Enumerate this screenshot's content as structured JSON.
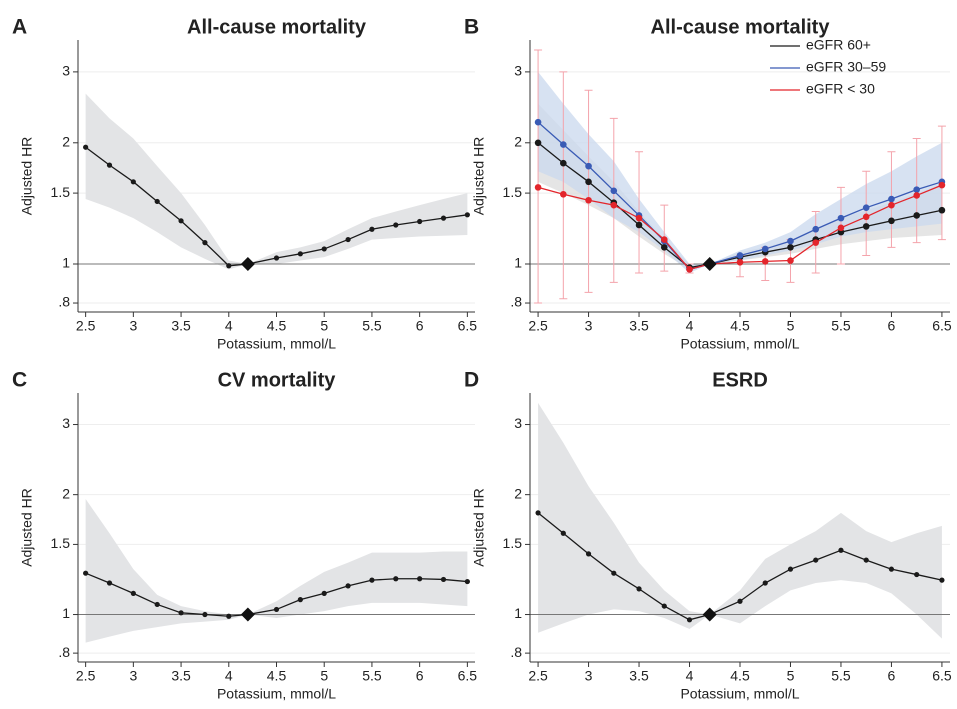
{
  "chart_data": [
    {
      "type": "line",
      "label": "A",
      "title": "All-cause mortality",
      "xlabel": "Potassium, mmol/L",
      "ylabel": "Adjusted HR",
      "log_y": true,
      "grid": true,
      "xlim": [
        2.42,
        6.58
      ],
      "ylim": [
        0.76,
        3.6
      ],
      "xticks": [
        2.5,
        3,
        3.5,
        4,
        4.5,
        5,
        5.5,
        6,
        6.5
      ],
      "yticks": [
        {
          "value": 0.8,
          "label": ".8"
        },
        1,
        1.5,
        2,
        3
      ],
      "reference": {
        "x": 4.2,
        "y": 1
      },
      "x": [
        2.5,
        2.75,
        3,
        3.25,
        3.5,
        3.75,
        4,
        4.2,
        4.5,
        4.75,
        5,
        5.25,
        5.5,
        5.75,
        6,
        6.25,
        6.5
      ],
      "color": "#1a1a1a",
      "band_color": "#e3e4e6",
      "values": [
        1.95,
        1.76,
        1.6,
        1.43,
        1.28,
        1.13,
        0.99,
        1,
        1.035,
        1.06,
        1.09,
        1.15,
        1.22,
        1.25,
        1.275,
        1.3,
        1.325
      ],
      "ci_lower": [
        1.45,
        1.38,
        1.3,
        1.2,
        1.1,
        1.03,
        0.97,
        1,
        1.0,
        1.02,
        1.04,
        1.09,
        1.15,
        1.16,
        1.17,
        1.175,
        1.18
      ],
      "ci_upper": [
        2.65,
        2.3,
        2.05,
        1.75,
        1.5,
        1.25,
        1.02,
        1,
        1.07,
        1.1,
        1.14,
        1.22,
        1.3,
        1.35,
        1.4,
        1.45,
        1.5
      ]
    },
    {
      "type": "line",
      "label": "B",
      "title": "All-cause mortality",
      "xlabel": "Potassium, mmol/L",
      "ylabel": "Adjusted HR",
      "log_y": true,
      "grid": true,
      "legend": "top-right",
      "xlim": [
        2.42,
        6.58
      ],
      "ylim": [
        0.76,
        3.6
      ],
      "xticks": [
        2.5,
        3,
        3.5,
        4,
        4.5,
        5,
        5.5,
        6,
        6.5
      ],
      "yticks": [
        {
          "value": 0.8,
          "label": ".8"
        },
        1,
        1.5,
        2,
        3
      ],
      "reference": {
        "x": 4.2,
        "y": 1
      },
      "x": [
        2.5,
        2.75,
        3,
        3.25,
        3.5,
        3.75,
        4,
        4.2,
        4.5,
        4.75,
        5,
        5.25,
        5.5,
        5.75,
        6,
        6.25,
        6.5
      ],
      "series": [
        {
          "name": "eGFR 60+",
          "color": "#1a1a1a",
          "band_color": "#dcdcdc",
          "ci_style": "band",
          "values": [
            2.0,
            1.78,
            1.6,
            1.42,
            1.25,
            1.1,
            0.98,
            1,
            1.04,
            1.07,
            1.1,
            1.15,
            1.2,
            1.24,
            1.28,
            1.32,
            1.36
          ],
          "ci_lower": [
            1.6,
            1.5,
            1.4,
            1.3,
            1.17,
            1.06,
            0.97,
            1,
            1.02,
            1.04,
            1.06,
            1.09,
            1.12,
            1.14,
            1.16,
            1.17,
            1.18
          ],
          "ci_upper": [
            2.5,
            2.15,
            1.85,
            1.6,
            1.35,
            1.15,
            1.0,
            1,
            1.07,
            1.1,
            1.15,
            1.22,
            1.3,
            1.36,
            1.42,
            1.5,
            1.58
          ]
        },
        {
          "name": "eGFR 30–59",
          "color": "#3a5bb5",
          "band_color": "#c9d8ee",
          "ci_style": "band",
          "values": [
            2.25,
            1.98,
            1.75,
            1.52,
            1.32,
            1.14,
            0.97,
            1,
            1.05,
            1.09,
            1.14,
            1.22,
            1.3,
            1.38,
            1.45,
            1.53,
            1.6
          ],
          "ci_lower": [
            1.7,
            1.6,
            1.45,
            1.3,
            1.2,
            1.08,
            0.95,
            1,
            1.02,
            1.05,
            1.08,
            1.12,
            1.17,
            1.2,
            1.22,
            1.24,
            1.26
          ],
          "ci_upper": [
            3.0,
            2.5,
            2.1,
            1.8,
            1.45,
            1.2,
            1.0,
            1,
            1.08,
            1.13,
            1.2,
            1.33,
            1.45,
            1.58,
            1.7,
            1.85,
            2.0
          ]
        },
        {
          "name": "eGFR < 30",
          "color": "#e3252b",
          "band_color": "#f4a3ab",
          "ci_style": "bars",
          "values": [
            1.55,
            1.49,
            1.44,
            1.4,
            1.3,
            1.15,
            0.97,
            1,
            1.01,
            1.015,
            1.02,
            1.13,
            1.23,
            1.31,
            1.4,
            1.48,
            1.57
          ],
          "ci_lower": [
            0.8,
            0.82,
            0.85,
            0.9,
            0.95,
            0.96,
            0.95,
            1,
            0.93,
            0.91,
            0.9,
            0.95,
            1.0,
            1.05,
            1.1,
            1.13,
            1.15
          ],
          "ci_upper": [
            3.4,
            3.0,
            2.7,
            2.3,
            1.9,
            1.4,
            1.0,
            1,
            1.05,
            1.1,
            1.15,
            1.35,
            1.55,
            1.7,
            1.9,
            2.05,
            2.2
          ]
        }
      ]
    },
    {
      "type": "line",
      "label": "C",
      "title": "CV mortality",
      "xlabel": "Potassium, mmol/L",
      "ylabel": "Adjusted HR",
      "log_y": true,
      "grid": true,
      "xlim": [
        2.42,
        6.58
      ],
      "ylim": [
        0.76,
        3.6
      ],
      "xticks": [
        2.5,
        3,
        3.5,
        4,
        4.5,
        5,
        5.5,
        6,
        6.5
      ],
      "yticks": [
        {
          "value": 0.8,
          "label": ".8"
        },
        1,
        1.5,
        2,
        3
      ],
      "reference": {
        "x": 4.2,
        "y": 1
      },
      "x": [
        2.5,
        2.75,
        3,
        3.25,
        3.5,
        3.75,
        4,
        4.2,
        4.5,
        4.75,
        5,
        5.25,
        5.5,
        5.75,
        6,
        6.25,
        6.5
      ],
      "color": "#1a1a1a",
      "band_color": "#e3e4e6",
      "values": [
        1.27,
        1.2,
        1.13,
        1.06,
        1.01,
        1.0,
        0.99,
        1,
        1.03,
        1.09,
        1.13,
        1.18,
        1.22,
        1.23,
        1.23,
        1.225,
        1.21
      ],
      "ci_lower": [
        0.85,
        0.88,
        0.91,
        0.93,
        0.95,
        0.96,
        0.97,
        1,
        0.98,
        1.0,
        1.02,
        1.05,
        1.07,
        1.07,
        1.07,
        1.06,
        1.05
      ],
      "ci_upper": [
        1.95,
        1.6,
        1.3,
        1.12,
        1.05,
        1.02,
        1.0,
        1,
        1.08,
        1.18,
        1.28,
        1.35,
        1.43,
        1.43,
        1.43,
        1.44,
        1.44
      ]
    },
    {
      "type": "line",
      "label": "D",
      "title": "ESRD",
      "xlabel": "Potassium, mmol/L",
      "ylabel": "Adjusted HR",
      "log_y": true,
      "grid": true,
      "xlim": [
        2.42,
        6.58
      ],
      "ylim": [
        0.76,
        3.6
      ],
      "xticks": [
        2.5,
        3,
        3.5,
        4,
        4.5,
        5,
        5.5,
        6,
        6.5
      ],
      "yticks": [
        {
          "value": 0.8,
          "label": ".8"
        },
        1,
        1.5,
        2,
        3
      ],
      "reference": {
        "x": 4.2,
        "y": 1
      },
      "x": [
        2.5,
        2.75,
        3,
        3.25,
        3.5,
        3.75,
        4,
        4.2,
        4.5,
        4.75,
        5,
        5.25,
        5.5,
        5.75,
        6,
        6.25,
        6.5
      ],
      "color": "#1a1a1a",
      "band_color": "#e3e4e6",
      "values": [
        1.8,
        1.6,
        1.42,
        1.27,
        1.16,
        1.05,
        0.97,
        1,
        1.08,
        1.2,
        1.3,
        1.37,
        1.45,
        1.37,
        1.3,
        1.26,
        1.22
      ],
      "ci_lower": [
        0.9,
        0.95,
        1.0,
        1.03,
        1.02,
        0.98,
        0.92,
        1,
        0.95,
        1.05,
        1.15,
        1.2,
        1.22,
        1.2,
        1.13,
        1.0,
        0.87
      ],
      "ci_upper": [
        3.4,
        2.7,
        2.1,
        1.7,
        1.35,
        1.15,
        1.02,
        1,
        1.15,
        1.38,
        1.5,
        1.62,
        1.8,
        1.62,
        1.52,
        1.6,
        1.67
      ]
    }
  ]
}
